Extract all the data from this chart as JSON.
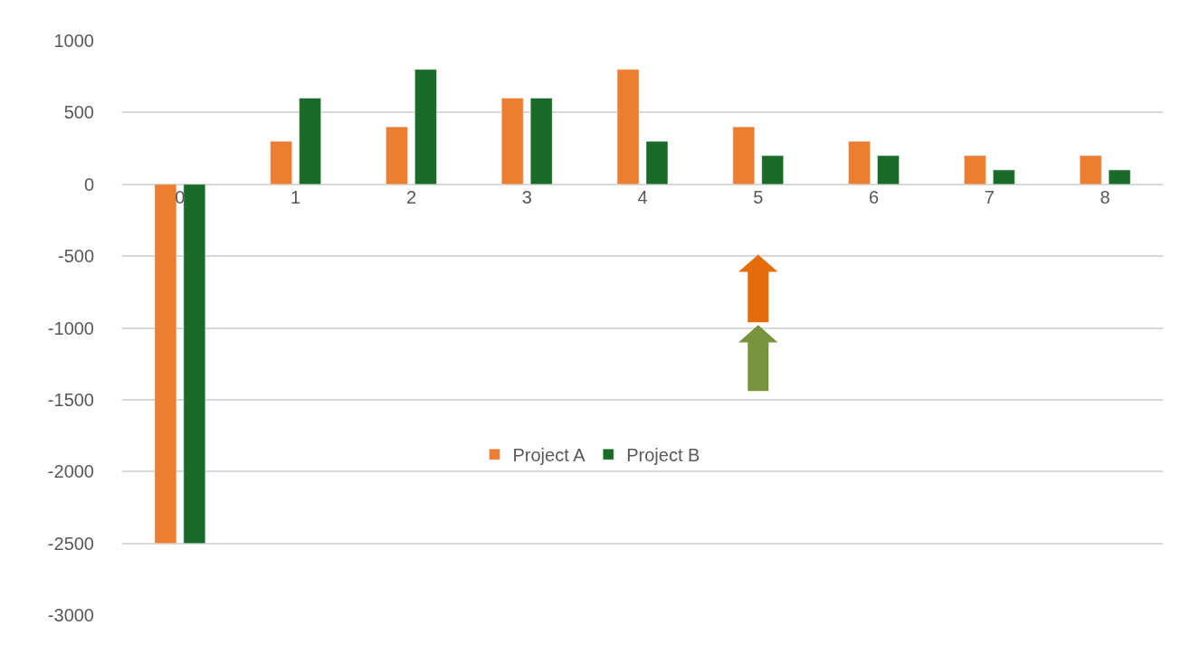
{
  "chart_data": {
    "type": "bar",
    "categories": [
      "0",
      "1",
      "2",
      "3",
      "4",
      "5",
      "6",
      "7",
      "8"
    ],
    "series": [
      {
        "name": "Project A",
        "color": "#ed7d31",
        "values": [
          -2500,
          300,
          400,
          600,
          800,
          400,
          300,
          200,
          200
        ]
      },
      {
        "name": "Project B",
        "color": "#1a6b27",
        "values": [
          -2500,
          600,
          800,
          600,
          300,
          200,
          200,
          100,
          100
        ]
      }
    ],
    "ylim": [
      -3000,
      1000
    ],
    "yticks": [
      -3000,
      -2500,
      -2000,
      -1500,
      -1000,
      -500,
      0,
      500,
      1000
    ],
    "grid": "y",
    "legend": "center"
  }
}
